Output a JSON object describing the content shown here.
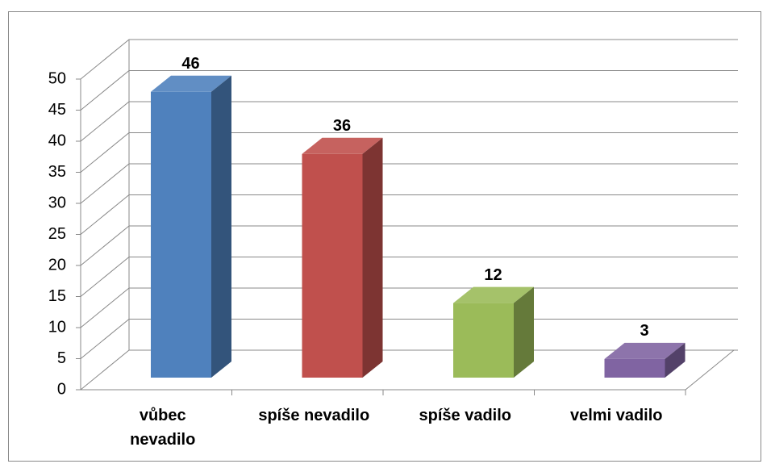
{
  "chart_data": {
    "type": "bar3d",
    "categories": [
      "vůbec nevadilo",
      "spíše nevadilo",
      "spíše vadilo",
      "velmi vadilo"
    ],
    "values": [
      46,
      36,
      12,
      3
    ],
    "colors": [
      "#4f81bd",
      "#c0504d",
      "#9bbb59",
      "#8064a2"
    ],
    "ylim": [
      0,
      50
    ],
    "yticks": [
      0,
      5,
      10,
      15,
      20,
      25,
      30,
      35,
      40,
      45,
      50
    ],
    "grid": true
  }
}
